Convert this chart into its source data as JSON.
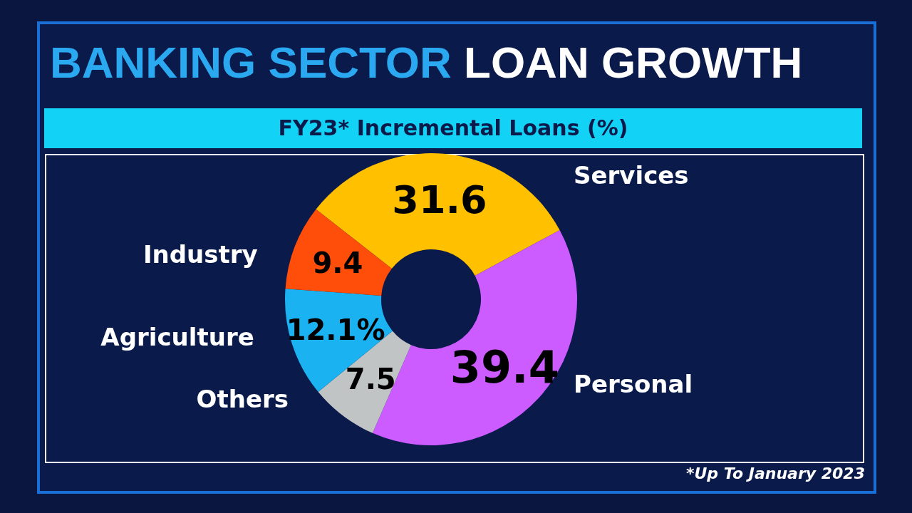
{
  "chart_data": {
    "type": "donut",
    "title": "BANKING SECTOR LOAN GROWTH",
    "subtitle": "FY23* Incremental Loans (%)",
    "categories": [
      "Services",
      "Personal",
      "Others",
      "Agriculture",
      "Industry"
    ],
    "values": [
      31.6,
      39.4,
      7.5,
      12.1,
      9.4
    ],
    "colors": [
      "#ffc000",
      "#cc5cff",
      "#c0c4c4",
      "#1ab2f0",
      "#ff4d0a"
    ],
    "value_labels": [
      "31.6",
      "39.4",
      "7.5",
      "12.1%",
      "9.4"
    ],
    "annotations": [
      "*Up To January 2023"
    ],
    "legend": false
  }
}
